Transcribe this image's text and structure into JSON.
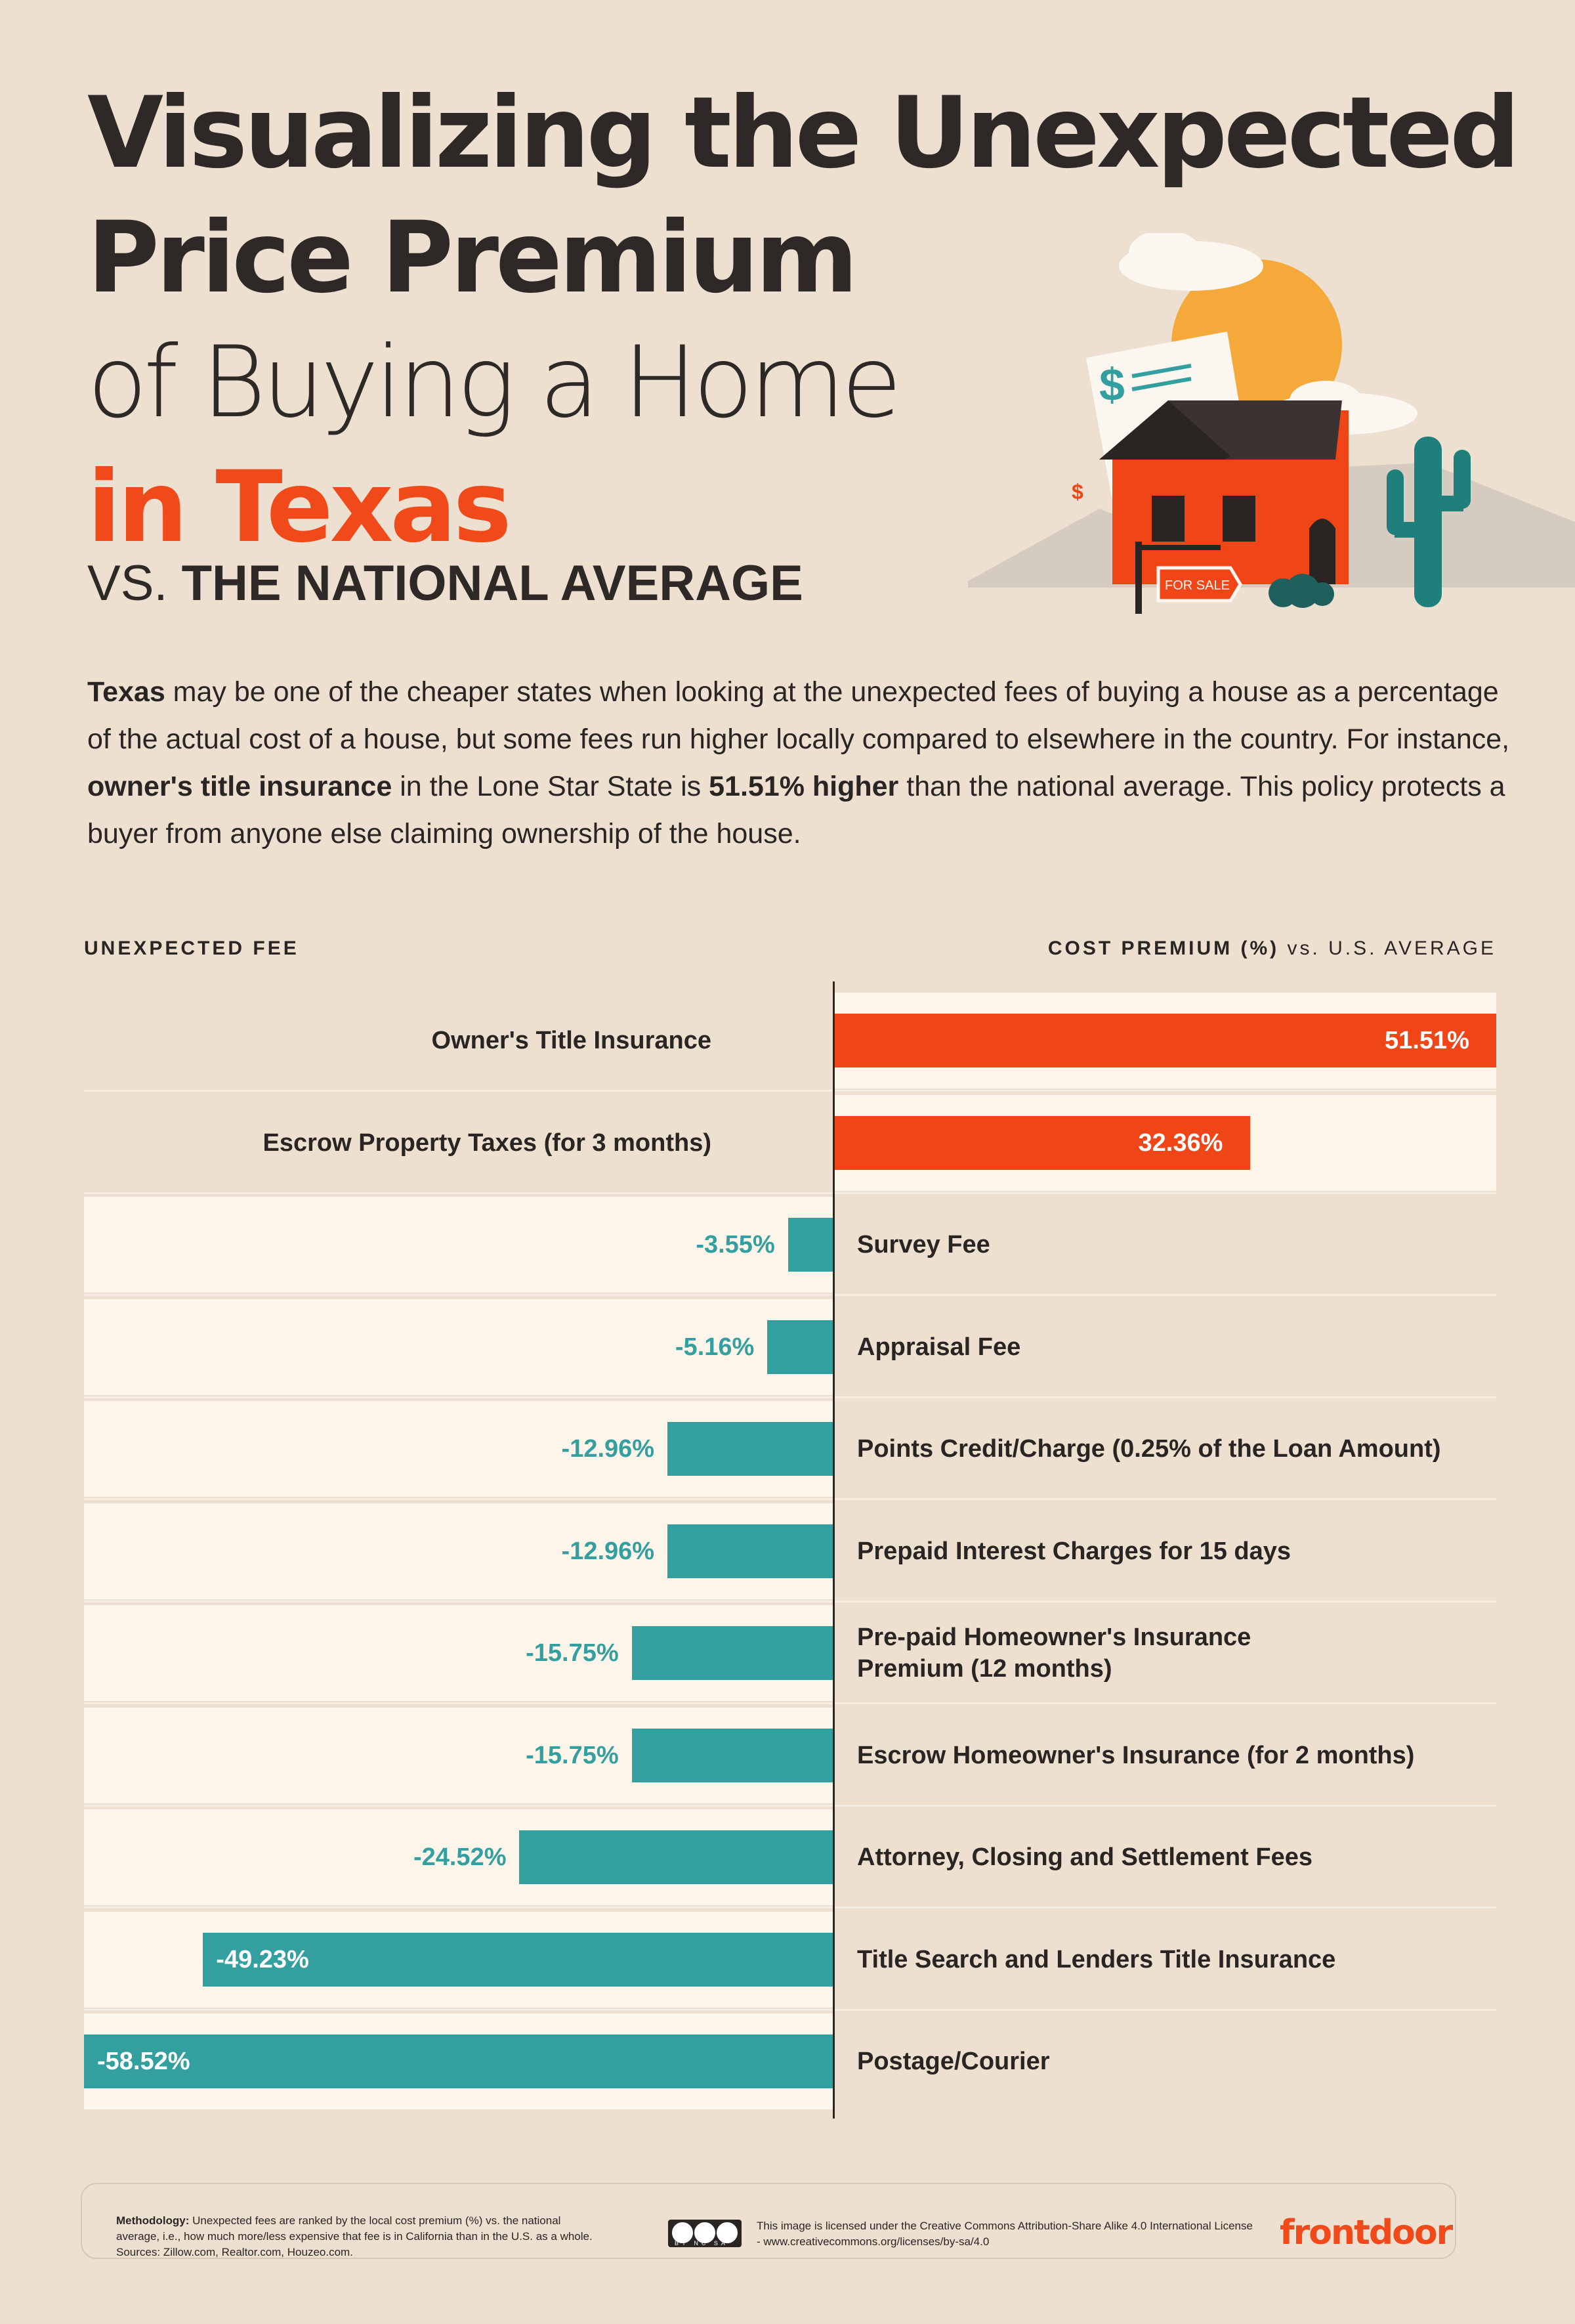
{
  "header": {
    "title_line1": "Visualizing the Unexpected",
    "title_line2": "Price Premium",
    "title_line3": "of Buying a Home",
    "title_line4": "in Texas",
    "subtitle_vs": "VS.",
    "subtitle_rest": "THE NATIONAL AVERAGE"
  },
  "illustration": {
    "sign_text": "FOR SALE",
    "dollar_big": "$",
    "dollar_small": "$"
  },
  "intro": {
    "p1": "Texas",
    "p2": " may be one of the cheaper states when looking at the unexpected fees of buying a house as a percentage of the actual cost of a house, but some fees run higher locally compared to elsewhere in the country. For instance, ",
    "p3": "owner's title insurance",
    "p4": " in the Lone Star State is ",
    "p5": "51.51% higher",
    "p6": " than the national average. This policy protects a buyer from anyone else claiming ownership of the house."
  },
  "columns": {
    "left": "UNEXPECTED FEE",
    "right_bold": "COST PREMIUM (%)",
    "right_rest": " vs. U.S. AVERAGE"
  },
  "chart_data": {
    "type": "bar",
    "orientation": "horizontal",
    "categories": [
      "Owner's Title Insurance",
      "Escrow Property Taxes (for 3 months)",
      "Survey Fee",
      "Appraisal Fee",
      "Points Credit/Charge (0.25% of the Loan Amount)",
      "Prepaid Interest Charges for 15 days",
      "Pre-paid Homeowner's Insurance Premium (12 months)",
      "Escrow Homeowner's Insurance (for 2 months)",
      "Attorney, Closing and Settlement Fees",
      "Title Search and Lenders Title Insurance",
      "Postage/Courier"
    ],
    "category_lines": [
      [
        "Owner's Title Insurance"
      ],
      [
        "Escrow Property Taxes (for 3 months)"
      ],
      [
        "Survey Fee"
      ],
      [
        "Appraisal Fee"
      ],
      [
        "Points Credit/Charge (0.25% of the Loan Amount)"
      ],
      [
        "Prepaid Interest Charges for 15 days"
      ],
      [
        "Pre-paid Homeowner's Insurance",
        "Premium (12 months)"
      ],
      [
        "Escrow Homeowner's Insurance (for 2 months)"
      ],
      [
        "Attorney, Closing and Settlement Fees"
      ],
      [
        "Title Search and Lenders Title Insurance"
      ],
      [
        "Postage/Courier"
      ]
    ],
    "values": [
      51.51,
      32.36,
      -3.55,
      -5.16,
      -12.96,
      -12.96,
      -15.75,
      -15.75,
      -24.52,
      -49.23,
      -58.52
    ],
    "value_labels": [
      "51.51%",
      "32.36%",
      "-3.55%",
      "-5.16%",
      "-12.96%",
      "-12.96%",
      "-15.75%",
      "-15.75%",
      "-24.52%",
      "-49.23%",
      "-58.52%"
    ],
    "xlim": [
      -58.52,
      51.51
    ],
    "colors": {
      "positive": "#f04516",
      "negative": "#33a09f"
    },
    "grid": false
  },
  "footer": {
    "methodology_label": "Methodology:",
    "methodology_text": " Unexpected fees are ranked by the local cost premium (%) vs. the national average, i.e., how much more/less expensive that fee is in California than in the U.S. as a whole. Sources: Zillow.com, Realtor.com, Houzeo.com.",
    "cc_text": "BY NC SA",
    "license_text": "This image is licensed under the Creative Commons Attribution-Share Alike 4.0 International License - www.creativecommons.org/licenses/by-sa/4.0",
    "brand": "frontdoor"
  }
}
